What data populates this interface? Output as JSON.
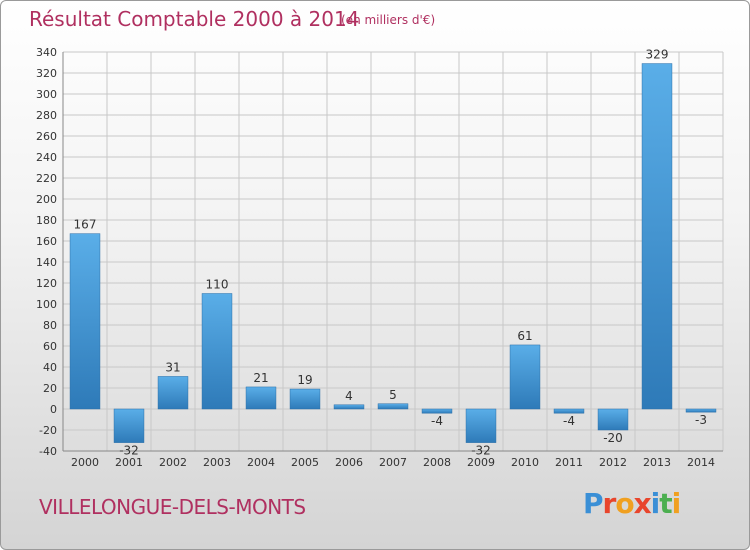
{
  "header": {
    "title": "Résultat Comptable 2000 à 2014",
    "subtitle": "(en milliers d'€)"
  },
  "footer": {
    "town": "VILLELONGUE-DELS-MONTS",
    "brand": "Proxiti",
    "brand_colors": [
      "#3a8fd6",
      "#e8452c",
      "#f0a020",
      "#e8452c",
      "#3a8fd6",
      "#4caf50",
      "#f0a020"
    ]
  },
  "colors": {
    "bar_light": "#5aaee8",
    "bar_dark": "#2e7ab8",
    "grid": "#c8c8c8",
    "title": "#b03060"
  },
  "chart_data": {
    "type": "bar",
    "categories": [
      "2000",
      "2001",
      "2002",
      "2003",
      "2004",
      "2005",
      "2006",
      "2007",
      "2008",
      "2009",
      "2010",
      "2011",
      "2012",
      "2013",
      "2014"
    ],
    "values": [
      167,
      -32,
      31,
      110,
      21,
      19,
      4,
      5,
      -4,
      -32,
      61,
      -4,
      -20,
      329,
      -3
    ],
    "ylim": [
      -40,
      340
    ],
    "yticks": [
      -40,
      -20,
      0,
      20,
      40,
      60,
      80,
      100,
      120,
      140,
      160,
      180,
      200,
      220,
      240,
      260,
      280,
      300,
      320,
      340
    ],
    "grid": true,
    "legend": "none"
  }
}
